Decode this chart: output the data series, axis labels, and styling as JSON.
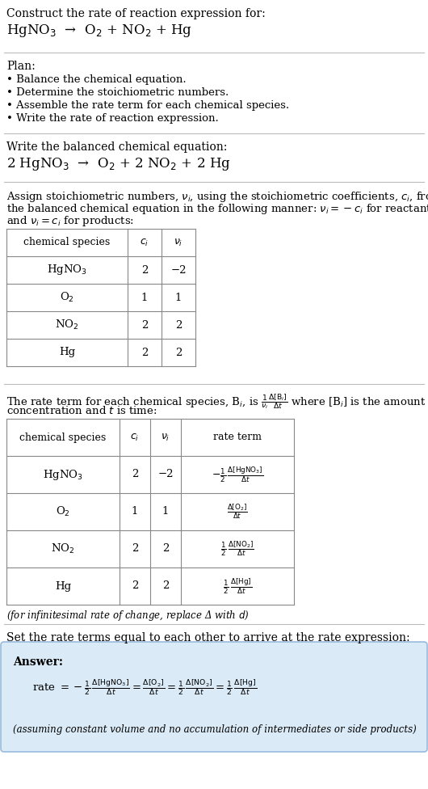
{
  "title_line1": "Construct the rate of reaction expression for:",
  "title_line2": "HgNO$_3$  →  O$_2$ + NO$_2$ + Hg",
  "plan_header": "Plan:",
  "plan_items": [
    "• Balance the chemical equation.",
    "• Determine the stoichiometric numbers.",
    "• Assemble the rate term for each chemical species.",
    "• Write the rate of reaction expression."
  ],
  "balanced_header": "Write the balanced chemical equation:",
  "balanced_eq": "2 HgNO$_3$  →  O$_2$ + 2 NO$_2$ + 2 Hg",
  "stoich_intro1": "Assign stoichiometric numbers, $\\nu_i$, using the stoichiometric coefficients, $c_i$, from",
  "stoich_intro2": "the balanced chemical equation in the following manner: $\\nu_i = -c_i$ for reactants",
  "stoich_intro3": "and $\\nu_i = c_i$ for products:",
  "table1_headers": [
    "chemical species",
    "$c_i$",
    "$\\nu_i$"
  ],
  "table1_rows": [
    [
      "HgNO$_3$",
      "2",
      "−2"
    ],
    [
      "O$_2$",
      "1",
      "1"
    ],
    [
      "NO$_2$",
      "2",
      "2"
    ],
    [
      "Hg",
      "2",
      "2"
    ]
  ],
  "rate_intro1": "The rate term for each chemical species, B$_i$, is $\\frac{1}{\\nu_i}\\frac{\\Delta[\\mathrm{B}_i]}{\\Delta t}$ where [B$_i$] is the amount",
  "rate_intro2": "concentration and $t$ is time:",
  "table2_headers": [
    "chemical species",
    "$c_i$",
    "$\\nu_i$",
    "rate term"
  ],
  "table2_rows": [
    [
      "HgNO$_3$",
      "2",
      "−2",
      "$-\\frac{1}{2}\\,\\frac{\\Delta[\\mathrm{HgNO_3}]}{\\Delta t}$"
    ],
    [
      "O$_2$",
      "1",
      "1",
      "$\\frac{\\Delta[\\mathrm{O_2}]}{\\Delta t}$"
    ],
    [
      "NO$_2$",
      "2",
      "2",
      "$\\frac{1}{2}\\,\\frac{\\Delta[\\mathrm{NO_2}]}{\\Delta t}$"
    ],
    [
      "Hg",
      "2",
      "2",
      "$\\frac{1}{2}\\,\\frac{\\Delta[\\mathrm{Hg}]}{\\Delta t}$"
    ]
  ],
  "infinitesimal_note": "(for infinitesimal rate of change, replace Δ with $d$)",
  "set_equal_text": "Set the rate terms equal to each other to arrive at the rate expression:",
  "answer_label": "Answer:",
  "answer_eq": "rate $= -\\frac{1}{2}\\,\\frac{\\Delta[\\mathrm{HgNO_3}]}{\\Delta t} = \\frac{\\Delta[\\mathrm{O_2}]}{\\Delta t} = \\frac{1}{2}\\,\\frac{\\Delta[\\mathrm{NO_2}]}{\\Delta t} = \\frac{1}{2}\\,\\frac{\\Delta[\\mathrm{Hg}]}{\\Delta t}$",
  "answer_note": "(assuming constant volume and no accumulation of intermediates or side products)",
  "bg_color": "#ffffff",
  "answer_box_color": "#daeaf6",
  "text_color": "#000000",
  "font_size": 9.5,
  "title_font_size": 10,
  "eq_font_size": 12
}
